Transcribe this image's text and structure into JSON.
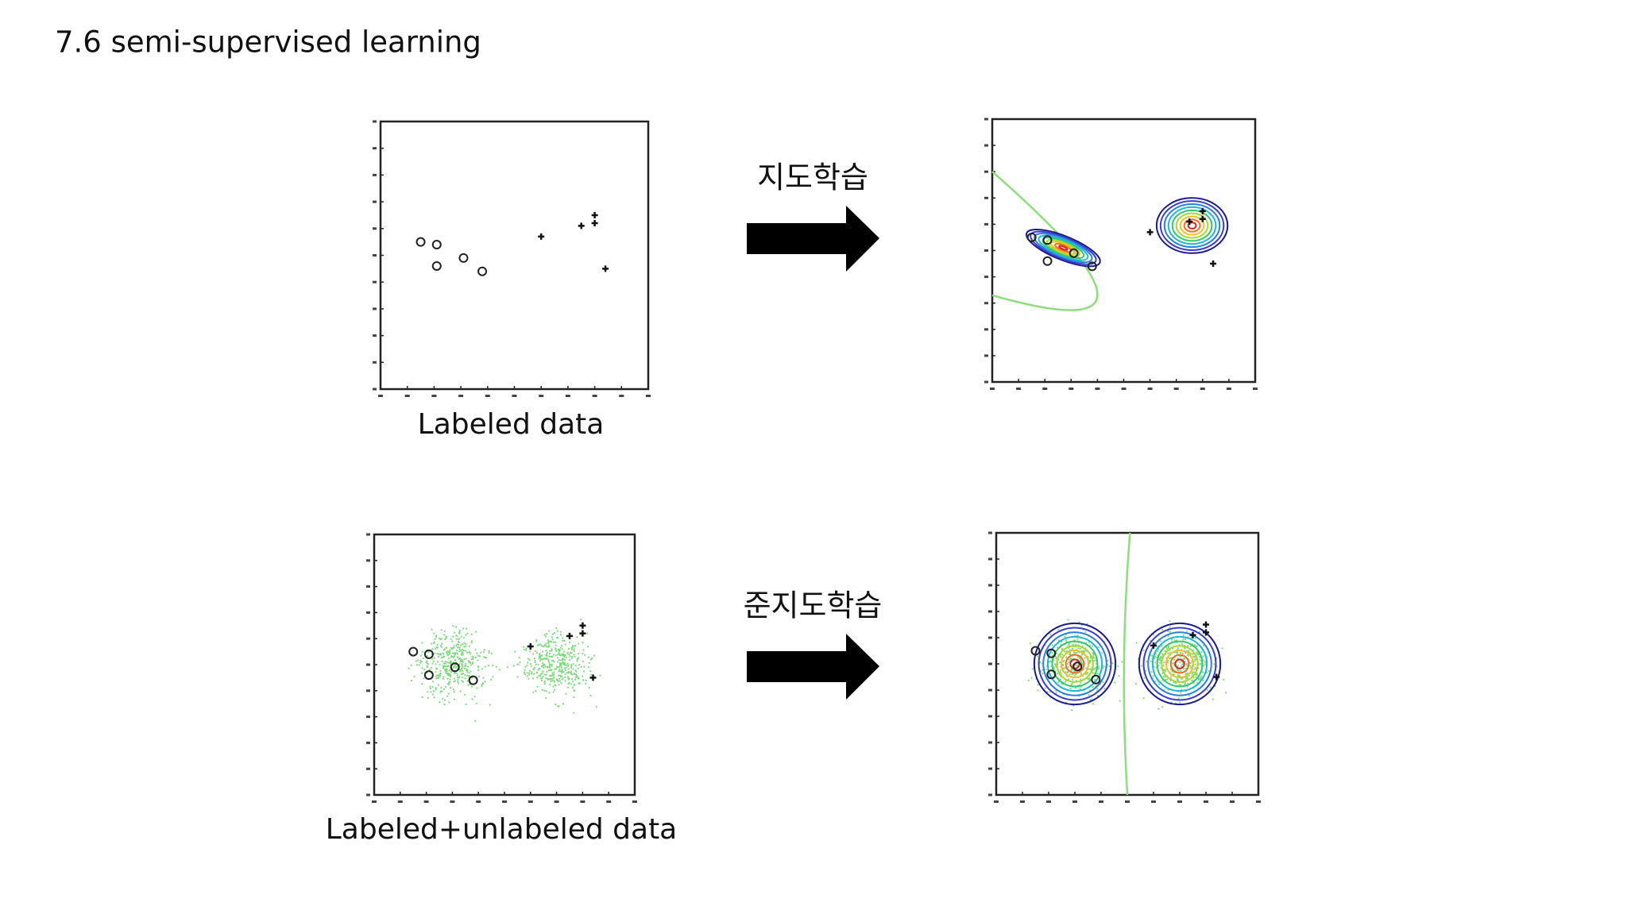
{
  "header": {
    "title": "7.6 semi-supervised learning"
  },
  "panels": [
    {
      "caption": "Labeled data",
      "method": "지도학습"
    },
    {
      "caption": "Labeled+unlabeled data",
      "method": "준지도학습"
    }
  ]
}
